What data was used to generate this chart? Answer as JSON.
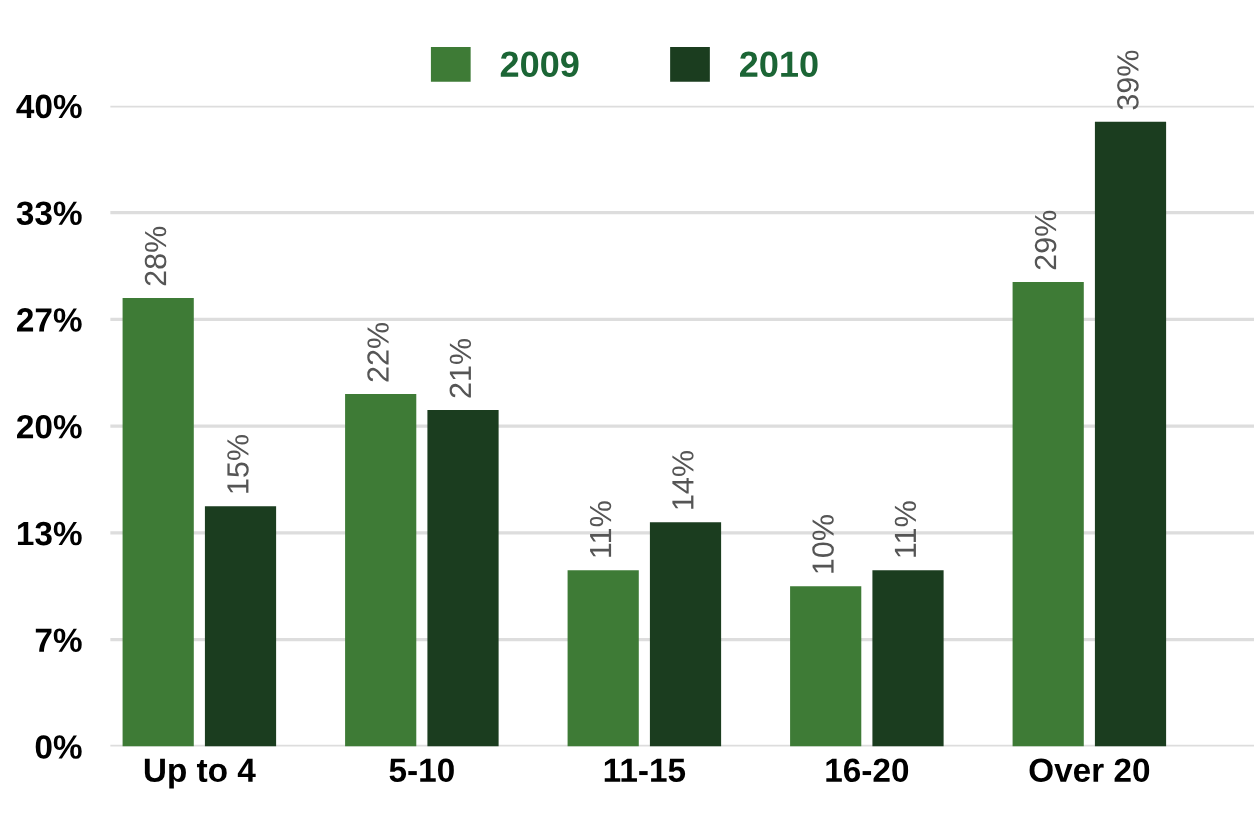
{
  "chart_data": {
    "type": "bar",
    "categories": [
      "Up to 4",
      "5-10",
      "11-15",
      "16-20",
      "Over 20"
    ],
    "series": [
      {
        "name": "2009",
        "color": "#3e7b36",
        "values": [
          28,
          22,
          11,
          10,
          29
        ],
        "value_labels": [
          "28%",
          "22%",
          "11%",
          "10%",
          "29%"
        ]
      },
      {
        "name": "2010",
        "color": "#1b3d1f",
        "values": [
          15,
          21,
          14,
          11,
          39
        ],
        "value_labels": [
          "15%",
          "21%",
          "14%",
          "11%",
          "39%"
        ]
      }
    ],
    "ylim": [
      0,
      40
    ],
    "yticks": [
      {
        "value": 0,
        "label": "0%"
      },
      {
        "value": 6.67,
        "label": "7%"
      },
      {
        "value": 13.33,
        "label": "13%"
      },
      {
        "value": 20,
        "label": "20%"
      },
      {
        "value": 26.67,
        "label": "27%"
      },
      {
        "value": 33.33,
        "label": "33%"
      },
      {
        "value": 40,
        "label": "40%"
      }
    ],
    "grid": "y",
    "legend": "top"
  }
}
